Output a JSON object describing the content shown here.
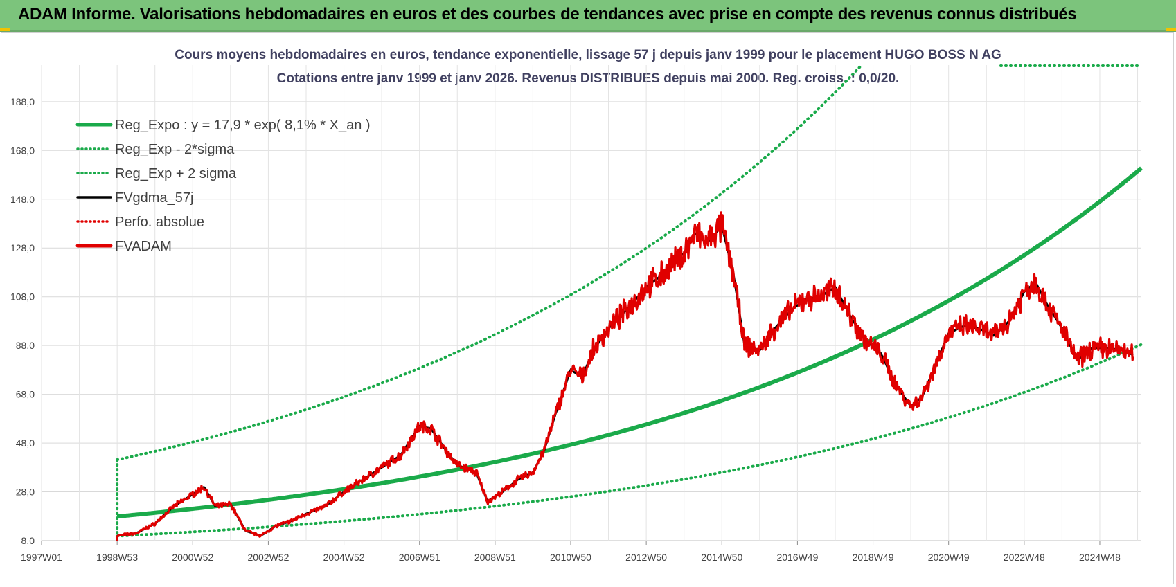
{
  "banner": {
    "title": "ADAM Informe. Valorisations hebdomadaires en euros et des courbes de tendances avec prise en compte des revenus connus distribués",
    "bg_color": "#7cc47c"
  },
  "chart_data": {
    "type": "line",
    "title": "Cours moyens hebdomadaires en euros, tendance exponentielle, lissage 57 j depuis janv 1999 pour le placement HUGO BOSS N AG",
    "subtitle": "Cotations entre janv 1999 et janv 2026. Revenus DISTRIBUES depuis mai 2000. Reg. croiss. : 0,0/20.",
    "xlabel": "",
    "ylabel": "",
    "ylim": [
      8,
      203
    ],
    "y_ticks": [
      "8,0",
      "28,0",
      "48,0",
      "68,0",
      "88,0",
      "108,0",
      "128,0",
      "148,0",
      "168,0",
      "188,0"
    ],
    "x_ticks": [
      "1997W01",
      "1998W53",
      "2000W52",
      "2002W52",
      "2004W52",
      "2006W51",
      "2008W51",
      "2010W50",
      "2012W50",
      "2014W50",
      "2016W49",
      "2018W49",
      "2020W49",
      "2022W48",
      "2024W48"
    ],
    "x_range_years": [
      1997.0,
      2026.1
    ],
    "grid": true,
    "legend_position": "top-left",
    "regression": {
      "a": 17.9,
      "rate": 0.081,
      "start_year": 1999.0,
      "sigma_low_factor": 0.55,
      "sigma_high_factor": 2.3
    },
    "series": [
      {
        "name": "Reg_Expo : y = 17,9 * exp( 8,1% *  X_an )",
        "color": "#1aaa4a",
        "style": "solid-thick"
      },
      {
        "name": "Reg_Exp - 2*sigma",
        "color": "#1aaa4a",
        "style": "dotted"
      },
      {
        "name": "Reg_Exp + 2 sigma",
        "color": "#1aaa4a",
        "style": "dotted"
      },
      {
        "name": "FVgdma_57j",
        "color": "#000000",
        "style": "solid"
      },
      {
        "name": "Perfo. absolue",
        "color": "#e00000",
        "style": "dotted"
      },
      {
        "name": "FVADAM",
        "color": "#e00000",
        "style": "solid-thick",
        "x": [
          1999.0,
          1999.5,
          2000.0,
          2000.5,
          2001.0,
          2001.3,
          2001.6,
          2002.0,
          2002.4,
          2002.8,
          2003.2,
          2003.6,
          2004.0,
          2004.5,
          2005.0,
          2005.5,
          2006.0,
          2006.5,
          2007.0,
          2007.3,
          2007.7,
          2008.0,
          2008.5,
          2008.8,
          2009.2,
          2009.6,
          2010.0,
          2010.3,
          2010.6,
          2011.0,
          2011.3,
          2011.6,
          2012.0,
          2012.5,
          2013.0,
          2013.5,
          2014.0,
          2014.3,
          2014.6,
          2015.0,
          2015.3,
          2015.6,
          2016.0,
          2016.4,
          2016.8,
          2017.2,
          2017.6,
          2018.0,
          2018.4,
          2018.8,
          2019.2,
          2019.6,
          2020.0,
          2020.3,
          2020.6,
          2021.0,
          2021.4,
          2021.8,
          2022.2,
          2022.6,
          2023.0,
          2023.3,
          2023.6,
          2024.0,
          2024.4,
          2024.8,
          2025.2,
          2025.6,
          2025.9
        ],
        "values": [
          10,
          11,
          15,
          22,
          27,
          30,
          22,
          23,
          12,
          10,
          14,
          16,
          19,
          22,
          28,
          33,
          38,
          43,
          55,
          54,
          45,
          39,
          36,
          24,
          28,
          33,
          36,
          45,
          60,
          78,
          75,
          86,
          95,
          103,
          112,
          118,
          126,
          134,
          130,
          137,
          118,
          88,
          86,
          95,
          102,
          107,
          108,
          112,
          100,
          90,
          85,
          72,
          63,
          67,
          78,
          93,
          96,
          95,
          92,
          98,
          110,
          114,
          105,
          95,
          82,
          87,
          87,
          86,
          84
        ]
      }
    ]
  }
}
